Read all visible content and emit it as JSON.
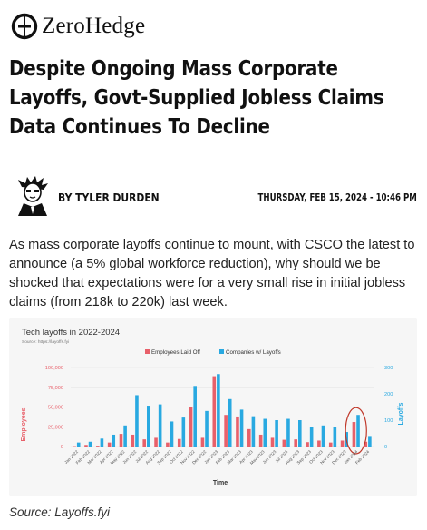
{
  "site": {
    "name": "ZeroHedge",
    "logo_icon": "zerohedge-theta-logo-icon"
  },
  "article": {
    "headline": "Despite Ongoing Mass Corporate Layoffs, Govt-Supplied Jobless Claims Data Continues To Decline",
    "author": "BY TYLER DURDEN",
    "date": "THURSDAY, FEB 15, 2024 - 10:46 PM",
    "author_avatar_icon": "author-avatar-icon",
    "lede": "As mass corporate layoffs continue to mount, with CSCO the latest to announce (a 5% global workforce reduction), why should we be shocked that expectations were for a very small rise in initial jobless claims (from 218k to 220k) last week.",
    "source_caption": "Source: Layoffs.fyi"
  },
  "chart_data": {
    "type": "bar",
    "title": "Tech layoffs in 2022-2024",
    "subtitle": "Source: https://layoffs.fyi",
    "xlabel": "Time",
    "ylabel": "Employees",
    "y2label": "Layoffs",
    "ylim": [
      0,
      100000
    ],
    "y2lim": [
      0,
      300
    ],
    "yticks": [
      "0",
      "25,000",
      "50,000",
      "75,000",
      "100,000"
    ],
    "y2ticks": [
      "0",
      "100",
      "200",
      "300"
    ],
    "legend_position": "top",
    "colors": {
      "employees": "#e8606a",
      "companies": "#29a9e1",
      "highlight_circle": "#c0392b"
    },
    "categories": [
      "Jan 2022",
      "Feb 2022",
      "Mar 2022",
      "Apr 2022",
      "May 2022",
      "Jun 2022",
      "Jul 2022",
      "Aug 2022",
      "Sep 2022",
      "Oct 2022",
      "Nov 2022",
      "Dec 2022",
      "Jan 2023",
      "Feb 2023",
      "Mar 2023",
      "Apr 2023",
      "May 2023",
      "Jun 2023",
      "Jul 2023",
      "Aug 2023",
      "Sep 2023",
      "Oct 2023",
      "Nov 2023",
      "Dec 2023",
      "Jan 2024",
      "Feb 2024"
    ],
    "series": [
      {
        "name": "Employees Laid Off",
        "axis": "left",
        "values": [
          500,
          2000,
          1000,
          5000,
          16000,
          15000,
          9000,
          11000,
          5000,
          9500,
          50000,
          11000,
          89000,
          40000,
          38000,
          22000,
          15000,
          11000,
          8500,
          9000,
          5500,
          7500,
          5000,
          7500,
          31000,
          6000
        ]
      },
      {
        "name": "Companies w/ Layoffs",
        "axis": "right",
        "values": [
          15,
          18,
          30,
          45,
          80,
          195,
          155,
          160,
          95,
          110,
          230,
          135,
          275,
          180,
          140,
          115,
          105,
          100,
          105,
          100,
          75,
          80,
          75,
          55,
          120,
          40
        ]
      }
    ],
    "annotations": [
      {
        "type": "circle",
        "category": "Jan 2024"
      }
    ]
  }
}
